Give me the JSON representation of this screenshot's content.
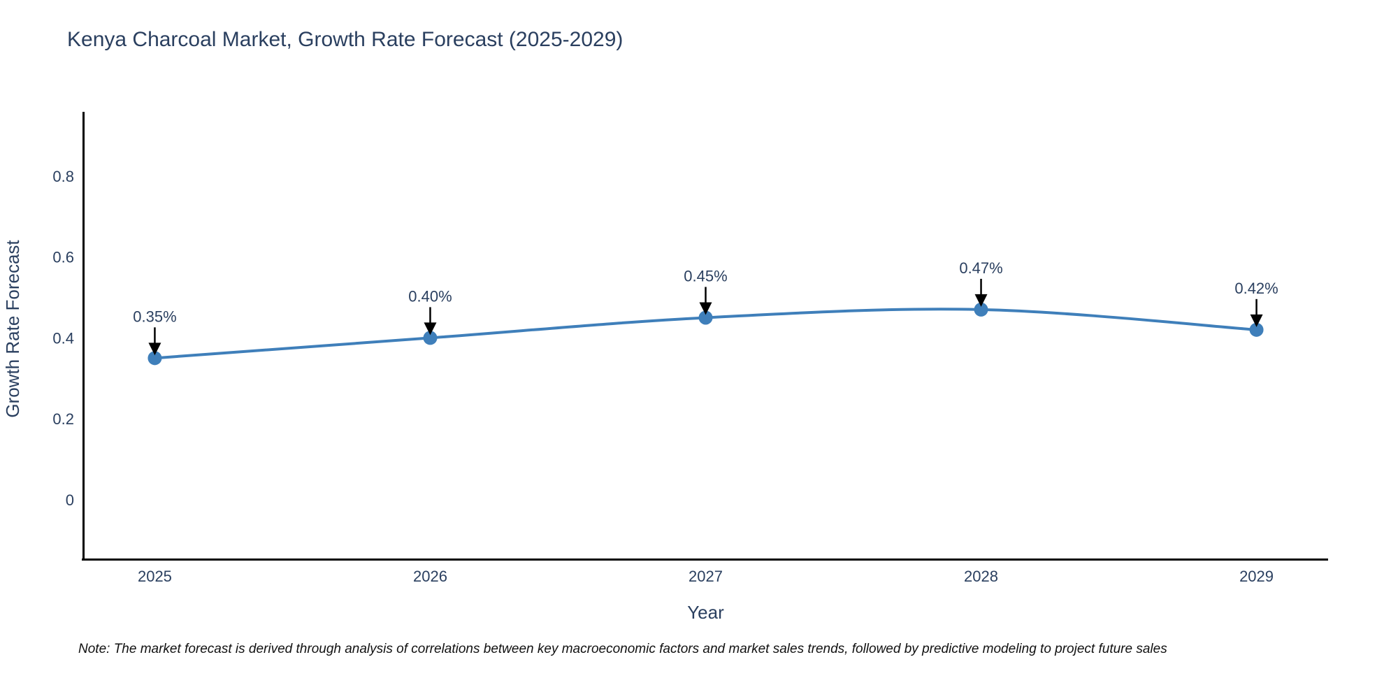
{
  "chart_data": {
    "type": "line",
    "title": "Kenya Charcoal Market, Growth Rate Forecast (2025-2029)",
    "x": [
      2025,
      2026,
      2027,
      2028,
      2029
    ],
    "series": [
      {
        "name": "Growth Rate Forecast",
        "values": [
          0.35,
          0.4,
          0.45,
          0.47,
          0.42
        ]
      }
    ],
    "point_labels": [
      "0.35%",
      "0.40%",
      "0.45%",
      "0.47%",
      "0.42%"
    ],
    "xlabel": "Year",
    "ylabel": "Growth Rate Forecast",
    "xtick_labels": [
      "2025",
      "2026",
      "2027",
      "2028",
      "2029"
    ],
    "ytick_values": [
      0,
      0.2,
      0.4,
      0.6,
      0.8
    ],
    "ytick_labels": [
      "0",
      "0.2",
      "0.4",
      "0.6",
      "0.8"
    ],
    "xlim": [
      2024.74,
      2029.26
    ],
    "ylim": [
      -0.149,
      0.959
    ],
    "grid": false,
    "legend": "none",
    "line_shape": "spline",
    "marker_style": "circle",
    "annotation_style": "arrow-down",
    "colors": {
      "line": "#3f7fba",
      "marker": "#3f7fba",
      "axis_line": "#000000",
      "chart_text": "#2a3f5f",
      "annotation_text": "#2a3f5f",
      "annotation_arrow": "#000000",
      "note_text": "#111111",
      "background": "#ffffff"
    }
  },
  "footer": {
    "note": "Note: The market forecast is derived through analysis of correlations between key macroeconomic factors and market sales trends, followed by predictive modeling to project future sales"
  }
}
